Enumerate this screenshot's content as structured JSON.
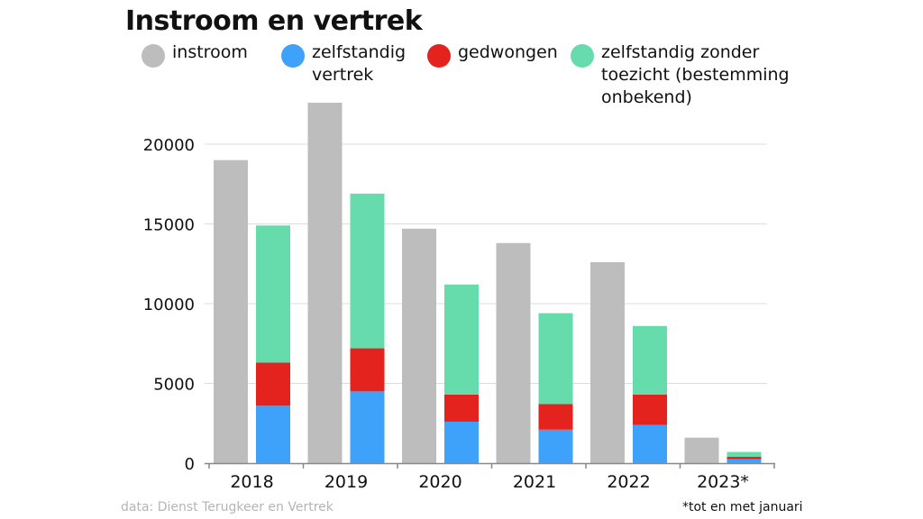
{
  "chart_data": {
    "type": "bar",
    "title": "Instroom en vertrek",
    "categories": [
      "2018",
      "2019",
      "2020",
      "2021",
      "2022",
      "2023*"
    ],
    "series": [
      {
        "name": "instroom",
        "color": "#bdbdbd",
        "stack": "instroom",
        "values": [
          19000,
          22600,
          14700,
          13800,
          12600,
          1600
        ]
      },
      {
        "name": "zelfstandig vertrek",
        "color": "#3ea2fb",
        "stack": "vertrek",
        "values": [
          3600,
          4500,
          2600,
          2100,
          2400,
          250
        ]
      },
      {
        "name": "gedwongen",
        "color": "#e5231e",
        "stack": "vertrek",
        "values": [
          2700,
          2700,
          1700,
          1600,
          1900,
          150
        ]
      },
      {
        "name": "zelfstandig zonder toezicht (bestemming onbekend)",
        "color": "#66dbab",
        "stack": "vertrek",
        "values": [
          8600,
          9700,
          6900,
          5700,
          4300,
          300
        ]
      }
    ],
    "yticks": [
      "0",
      "5000",
      "10000",
      "15000",
      "20000"
    ],
    "ylim": [
      0,
      25000
    ],
    "grid": true,
    "legend_position": "top",
    "source": "data: Dienst Terugkeer en Vertrek",
    "footnote": "*tot en met januari"
  },
  "legend": [
    {
      "lines": [
        "instroom"
      ],
      "color": "#bdbdbd"
    },
    {
      "lines": [
        "zelfstandig",
        "vertrek"
      ],
      "color": "#3ea2fb"
    },
    {
      "lines": [
        "gedwongen"
      ],
      "color": "#e5231e"
    },
    {
      "lines": [
        "zelfstandig zonder",
        "toezicht (bestemming",
        "onbekend)"
      ],
      "color": "#66dbab"
    }
  ]
}
